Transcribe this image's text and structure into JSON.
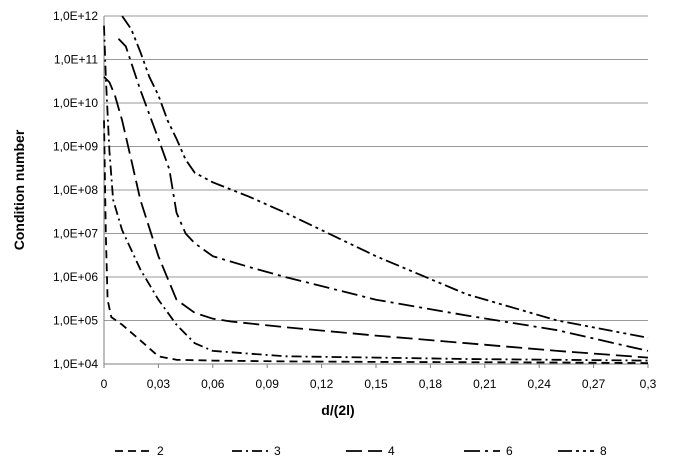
{
  "chart_data": {
    "type": "line",
    "xlabel": "d/(2l)",
    "ylabel": "Condition number",
    "y_scale": "log",
    "xlim": [
      0,
      0.3
    ],
    "ylim": [
      10000,
      1000000000000
    ],
    "grid": "horizontal",
    "legend_position": "bottom",
    "x_ticks": [
      "0",
      "0,03",
      "0,06",
      "0,09",
      "0,12",
      "0,15",
      "0,18",
      "0,21",
      "0,24",
      "0,27",
      "0,3"
    ],
    "y_ticks": [
      "1,0E+04",
      "1,0E+05",
      "1,0E+06",
      "1,0E+07",
      "1,0E+08",
      "1,0E+09",
      "1,0E+10",
      "1,0E+11",
      "1,0E+12"
    ],
    "series": [
      {
        "name": "2",
        "dash": "8,5",
        "x": [
          0,
          0.001,
          0.002,
          0.004,
          0.01,
          0.02,
          0.03,
          0.04,
          0.06,
          0.1,
          0.15,
          0.2,
          0.25,
          0.3
        ],
        "y": [
          4000000000,
          10000000,
          300000,
          120000,
          80000,
          35000,
          15000,
          12500,
          12000,
          11500,
          11200,
          11000,
          10800,
          10500
        ]
      },
      {
        "name": "3",
        "dash": "10,4,2,4",
        "x": [
          0,
          0.001,
          0.003,
          0.005,
          0.01,
          0.02,
          0.03,
          0.04,
          0.05,
          0.06,
          0.1,
          0.15,
          0.2,
          0.25,
          0.3
        ],
        "y": [
          600000000000,
          40000000000,
          800000000,
          60000000,
          12000000,
          1500000,
          300000,
          80000,
          30000,
          20000,
          15000,
          14000,
          13000,
          12500,
          12000
        ]
      },
      {
        "name": "4",
        "dash": "16,6",
        "x": [
          0,
          0.003,
          0.006,
          0.01,
          0.015,
          0.02,
          0.03,
          0.04,
          0.05,
          0.06,
          0.07,
          0.1,
          0.15,
          0.2,
          0.25,
          0.3
        ],
        "y": [
          40000000000,
          30000000000,
          15000000000,
          4000000000,
          500000000,
          60000000,
          3000000,
          300000,
          150000,
          110000,
          95000,
          70000,
          45000,
          30000,
          20000,
          14000
        ]
      },
      {
        "name": "6",
        "dash": "16,5,3,5",
        "x": [
          0.008,
          0.012,
          0.02,
          0.03,
          0.036,
          0.04,
          0.045,
          0.05,
          0.06,
          0.08,
          0.1,
          0.15,
          0.2,
          0.25,
          0.3
        ],
        "y": [
          300000000000,
          200000000000,
          20000000000,
          1500000000,
          300000000,
          30000000,
          10000000,
          6000000,
          3000000,
          1700000,
          1000000,
          300000,
          130000,
          60000,
          20000
        ]
      },
      {
        "name": "8",
        "dash": "14,4,3,4,3,4",
        "x": [
          0.01,
          0.015,
          0.02,
          0.025,
          0.03,
          0.035,
          0.04,
          0.045,
          0.05,
          0.06,
          0.08,
          0.1,
          0.15,
          0.2,
          0.25,
          0.3
        ],
        "y": [
          1000000000000,
          500000000000,
          150000000000,
          40000000000,
          15000000000,
          4000000000,
          1500000000,
          500000000,
          250000000,
          150000000,
          70000000,
          30000000,
          3000000,
          400000,
          100000,
          40000
        ]
      }
    ]
  }
}
